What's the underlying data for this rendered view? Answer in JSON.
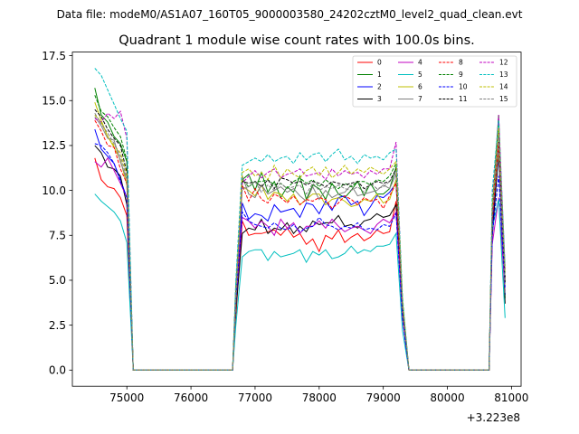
{
  "figure": {
    "suptitle": "Data file: modeM0/AS1A07_160T05_9000003580_24202cztM0_level2_quad_clean.evt"
  },
  "chart_data": {
    "type": "line",
    "title": "Quadrant 1 module wise count rates with 100.0s bins.",
    "xlabel": "",
    "ylabel": "",
    "x_offset_label": "+3.223e8",
    "xlim": [
      74150,
      81150
    ],
    "ylim": [
      -0.9,
      17.7
    ],
    "xticks": [
      75000,
      76000,
      77000,
      78000,
      79000,
      80000,
      81000
    ],
    "xtick_labels": [
      "75000",
      "76000",
      "77000",
      "78000",
      "79000",
      "80000",
      "81000"
    ],
    "yticks": [
      0.0,
      2.5,
      5.0,
      7.5,
      10.0,
      12.5,
      15.0,
      17.5
    ],
    "ytick_labels": [
      "0.0",
      "2.5",
      "5.0",
      "7.5",
      "10.0",
      "12.5",
      "15.0",
      "17.5"
    ],
    "grid": false,
    "legend_placement": "top-right",
    "legend_columns": 4,
    "x_segments": [
      [
        74500,
        74600,
        74700,
        74800,
        74900,
        75000,
        75100
      ],
      [
        75150,
        76650
      ],
      [
        76700,
        76800,
        76900,
        77000,
        77100,
        77200,
        77300,
        77400,
        77500,
        77600,
        77700,
        77800,
        77900,
        78000,
        78100,
        78200,
        78300,
        78400,
        78500,
        78600,
        78700,
        78800,
        78900,
        79000,
        79100,
        79200,
        79300,
        79400
      ],
      [
        79450,
        80650
      ],
      [
        80700,
        80800,
        80900
      ]
    ],
    "series": [
      {
        "name": "0",
        "color": "#ff0000",
        "dash": "solid",
        "segments": [
          [
            11.8,
            10.6,
            10.2,
            10.1,
            9.6,
            8.6,
            0.0
          ],
          [
            0.0,
            0.0
          ],
          [
            3.0,
            8.3,
            7.5,
            7.6,
            7.6,
            7.7,
            7.8,
            7.5,
            7.9,
            7.4,
            7.6,
            7.0,
            7.3,
            6.6,
            7.5,
            7.3,
            7.8,
            7.1,
            7.4,
            7.6,
            7.2,
            7.4,
            7.8,
            7.6,
            7.7,
            9.4,
            3.0,
            0.0
          ],
          [
            0.0,
            0.0
          ],
          [
            7.8,
            12.5,
            5.0
          ]
        ]
      },
      {
        "name": "1",
        "color": "#008000",
        "dash": "solid",
        "segments": [
          [
            15.7,
            14.2,
            13.8,
            13.0,
            12.6,
            11.6,
            0.0
          ],
          [
            0.0,
            0.0
          ],
          [
            4.5,
            10.6,
            10.9,
            10.0,
            11.0,
            9.9,
            10.5,
            9.6,
            10.2,
            9.9,
            10.8,
            9.5,
            10.3,
            10.1,
            9.5,
            10.4,
            9.8,
            9.6,
            10.0,
            10.5,
            9.7,
            10.4,
            9.8,
            9.8,
            10.1,
            11.3,
            3.8,
            0.0
          ],
          [
            0.0,
            0.0
          ],
          [
            8.7,
            14.2,
            4.0
          ]
        ]
      },
      {
        "name": "2",
        "color": "#0000ff",
        "dash": "solid",
        "segments": [
          [
            13.4,
            12.3,
            11.9,
            11.5,
            10.6,
            9.6,
            0.0
          ],
          [
            0.0,
            0.0
          ],
          [
            3.7,
            9.3,
            8.4,
            8.7,
            8.6,
            8.3,
            9.2,
            8.8,
            8.9,
            9.0,
            8.5,
            9.3,
            9.2,
            8.7,
            9.4,
            8.9,
            9.6,
            9.7,
            9.2,
            9.4,
            8.6,
            9.1,
            9.7,
            9.6,
            9.9,
            10.4,
            3.3,
            0.0
          ],
          [
            0.0,
            0.0
          ],
          [
            8.0,
            11.9,
            4.2
          ]
        ]
      },
      {
        "name": "3",
        "color": "#000000",
        "dash": "solid",
        "segments": [
          [
            12.5,
            12.1,
            11.3,
            11.2,
            10.8,
            9.2,
            0.0
          ],
          [
            0.0,
            0.0
          ],
          [
            3.3,
            7.6,
            7.9,
            7.8,
            8.4,
            7.6,
            7.9,
            7.8,
            8.2,
            7.6,
            8.0,
            7.7,
            8.3,
            8.1,
            8.2,
            8.2,
            8.6,
            8.0,
            8.1,
            7.9,
            8.3,
            8.4,
            8.7,
            8.5,
            8.6,
            9.2,
            3.0,
            0.0
          ],
          [
            0.0,
            0.0
          ],
          [
            7.4,
            12.2,
            3.7
          ]
        ]
      },
      {
        "name": "4",
        "color": "#c000c0",
        "dash": "solid",
        "segments": [
          [
            11.6,
            11.3,
            11.8,
            11.1,
            10.4,
            9.6,
            0.0
          ],
          [
            0.0,
            0.0
          ],
          [
            3.8,
            8.5,
            8.3,
            7.9,
            8.3,
            8.0,
            7.5,
            8.4,
            7.9,
            8.2,
            7.6,
            8.0,
            8.0,
            8.3,
            7.9,
            8.4,
            8.0,
            7.7,
            7.9,
            8.0,
            7.8,
            7.6,
            8.1,
            8.4,
            8.2,
            8.8,
            2.9,
            0.0
          ],
          [
            0.0,
            0.0
          ],
          [
            7.0,
            9.6,
            4.4
          ]
        ]
      },
      {
        "name": "5",
        "color": "#00bfbf",
        "dash": "solid",
        "segments": [
          [
            9.8,
            9.4,
            9.1,
            8.8,
            8.3,
            7.1,
            0.0
          ],
          [
            0.0,
            0.0
          ],
          [
            2.5,
            6.3,
            6.6,
            6.7,
            6.7,
            6.1,
            6.6,
            6.3,
            6.4,
            6.5,
            6.7,
            6.0,
            6.6,
            6.4,
            6.7,
            6.2,
            6.3,
            6.5,
            6.9,
            6.5,
            6.7,
            6.6,
            6.9,
            6.9,
            7.0,
            7.6,
            2.2,
            0.0
          ],
          [
            0.0,
            0.0
          ],
          [
            7.9,
            9.5,
            2.9
          ]
        ]
      },
      {
        "name": "6",
        "color": "#bfbf00",
        "dash": "solid",
        "segments": [
          [
            14.9,
            13.9,
            13.0,
            12.4,
            11.7,
            10.3,
            0.0
          ],
          [
            0.0,
            0.0
          ],
          [
            4.0,
            10.2,
            10.0,
            9.7,
            10.3,
            9.5,
            9.9,
            9.8,
            9.4,
            9.8,
            9.2,
            9.5,
            9.8,
            9.8,
            9.2,
            9.5,
            9.6,
            9.4,
            9.1,
            9.2,
            9.5,
            9.4,
            9.8,
            9.3,
            9.5,
            10.6,
            3.3,
            0.0
          ],
          [
            0.0,
            0.0
          ],
          [
            8.7,
            12.2,
            4.8
          ]
        ]
      },
      {
        "name": "7",
        "color": "#808080",
        "dash": "solid",
        "segments": [
          [
            14.1,
            13.6,
            12.9,
            12.8,
            11.6,
            10.6,
            0.0
          ],
          [
            0.0,
            0.0
          ],
          [
            3.6,
            10.8,
            9.8,
            9.6,
            10.3,
            9.8,
            10.0,
            10.2,
            9.9,
            10.1,
            9.7,
            9.4,
            10.2,
            9.5,
            10.0,
            9.6,
            9.8,
            9.9,
            10.3,
            9.7,
            9.8,
            9.9,
            10.0,
            10.3,
            10.1,
            10.9,
            3.5,
            0.0
          ],
          [
            0.0,
            0.0
          ],
          [
            8.6,
            12.4,
            4.3
          ]
        ]
      },
      {
        "name": "8",
        "color": "#ff0000",
        "dash": "dashed",
        "segments": [
          [
            13.9,
            13.3,
            12.5,
            12.4,
            11.2,
            10.4,
            0.0
          ],
          [
            0.0,
            0.0
          ],
          [
            4.1,
            10.3,
            9.4,
            10.1,
            9.5,
            9.3,
            9.8,
            9.6,
            9.3,
            9.7,
            9.2,
            9.5,
            9.4,
            9.6,
            9.5,
            9.0,
            9.3,
            9.7,
            9.5,
            9.2,
            9.6,
            9.4,
            9.5,
            9.0,
            9.7,
            10.4,
            3.4,
            0.0
          ],
          [
            0.0,
            0.0
          ],
          [
            8.3,
            12.7,
            5.1
          ]
        ]
      },
      {
        "name": "9",
        "color": "#008000",
        "dash": "dashed",
        "segments": [
          [
            15.3,
            14.4,
            14.1,
            13.5,
            13.0,
            11.7,
            0.0
          ],
          [
            0.0,
            0.0
          ],
          [
            4.6,
            10.6,
            10.2,
            10.5,
            10.5,
            10.6,
            10.3,
            10.4,
            10.1,
            10.5,
            10.7,
            10.4,
            10.6,
            10.2,
            10.6,
            10.3,
            10.1,
            10.4,
            10.2,
            10.5,
            10.5,
            10.3,
            10.6,
            10.5,
            10.8,
            11.5,
            3.6,
            0.0
          ],
          [
            0.0,
            0.0
          ],
          [
            9.0,
            13.6,
            5.2
          ]
        ]
      },
      {
        "name": "10",
        "color": "#0000ff",
        "dash": "dashed",
        "segments": [
          [
            12.6,
            12.5,
            12.1,
            11.5,
            10.5,
            9.6,
            0.0
          ],
          [
            0.0,
            0.0
          ],
          [
            3.9,
            8.8,
            8.3,
            8.1,
            8.0,
            7.9,
            8.2,
            7.9,
            7.8,
            8.1,
            7.7,
            7.9,
            8.0,
            8.5,
            8.1,
            8.0,
            7.8,
            8.0,
            7.9,
            8.2,
            7.8,
            7.9,
            7.8,
            8.1,
            8.0,
            8.7,
            2.9,
            0.0
          ],
          [
            0.0,
            0.0
          ],
          [
            7.5,
            10.8,
            4.6
          ]
        ]
      },
      {
        "name": "11",
        "color": "#000000",
        "dash": "dashed",
        "segments": [
          [
            14.5,
            14.1,
            13.4,
            12.9,
            12.5,
            11.0,
            0.0
          ],
          [
            0.0,
            0.0
          ],
          [
            4.3,
            10.5,
            10.4,
            10.5,
            10.2,
            10.6,
            10.1,
            10.7,
            10.6,
            10.4,
            10.5,
            10.3,
            10.5,
            10.4,
            10.2,
            10.5,
            10.4,
            10.3,
            10.4,
            10.5,
            10.1,
            10.3,
            10.5,
            10.4,
            10.5,
            11.2,
            3.6,
            0.0
          ],
          [
            0.0,
            0.0
          ],
          [
            8.8,
            13.3,
            4.9
          ]
        ]
      },
      {
        "name": "12",
        "color": "#c000c0",
        "dash": "dashed",
        "segments": [
          [
            14.0,
            13.8,
            14.3,
            14.0,
            14.4,
            12.9,
            0.0
          ],
          [
            0.0,
            0.0
          ],
          [
            4.8,
            10.4,
            10.8,
            11.1,
            10.7,
            11.0,
            11.2,
            10.7,
            10.9,
            11.0,
            11.2,
            10.8,
            10.9,
            11.0,
            10.6,
            11.2,
            10.8,
            11.1,
            10.9,
            11.0,
            10.7,
            11.1,
            10.9,
            11.2,
            11.2,
            12.7,
            3.8,
            0.0
          ],
          [
            0.0,
            0.0
          ],
          [
            9.3,
            14.2,
            5.6
          ]
        ]
      },
      {
        "name": "13",
        "color": "#00bfbf",
        "dash": "dashed",
        "segments": [
          [
            16.8,
            16.4,
            15.6,
            14.8,
            14.0,
            13.3,
            0.0
          ],
          [
            0.0,
            0.0
          ],
          [
            5.0,
            11.4,
            11.6,
            11.8,
            11.6,
            12.0,
            11.6,
            11.8,
            11.9,
            11.5,
            12.1,
            11.7,
            12.0,
            12.1,
            11.6,
            12.0,
            12.3,
            11.7,
            11.9,
            11.5,
            12.0,
            11.8,
            11.9,
            11.7,
            12.1,
            12.3,
            4.1,
            0.0
          ],
          [
            0.0,
            0.0
          ],
          [
            10.0,
            13.9,
            5.8
          ]
        ]
      },
      {
        "name": "14",
        "color": "#bfbf00",
        "dash": "dashed",
        "segments": [
          [
            14.2,
            13.8,
            13.0,
            12.5,
            12.1,
            10.9,
            0.0
          ],
          [
            0.0,
            0.0
          ],
          [
            4.2,
            11.0,
            11.2,
            10.8,
            11.0,
            10.6,
            11.4,
            10.7,
            11.2,
            10.9,
            10.7,
            11.1,
            11.3,
            10.8,
            11.3,
            10.7,
            11.0,
            11.4,
            10.9,
            11.2,
            11.0,
            11.3,
            11.1,
            10.9,
            11.2,
            11.6,
            3.9,
            0.0
          ],
          [
            0.0,
            0.0
          ],
          [
            9.1,
            13.5,
            5.4
          ]
        ]
      },
      {
        "name": "15",
        "color": "#808080",
        "dash": "dashed",
        "segments": [
          [
            14.3,
            13.7,
            13.2,
            12.6,
            11.9,
            10.7,
            0.0
          ],
          [
            0.0,
            0.0
          ],
          [
            4.1,
            10.1,
            10.2,
            10.5,
            9.9,
            10.3,
            10.0,
            10.4,
            10.1,
            10.2,
            10.3,
            9.8,
            10.4,
            10.0,
            10.2,
            10.1,
            10.3,
            10.1,
            10.0,
            10.2,
            9.9,
            10.4,
            10.1,
            10.2,
            10.5,
            11.0,
            3.6,
            0.0
          ],
          [
            0.0,
            0.0
          ],
          [
            8.7,
            13.1,
            5.0
          ]
        ]
      }
    ]
  }
}
